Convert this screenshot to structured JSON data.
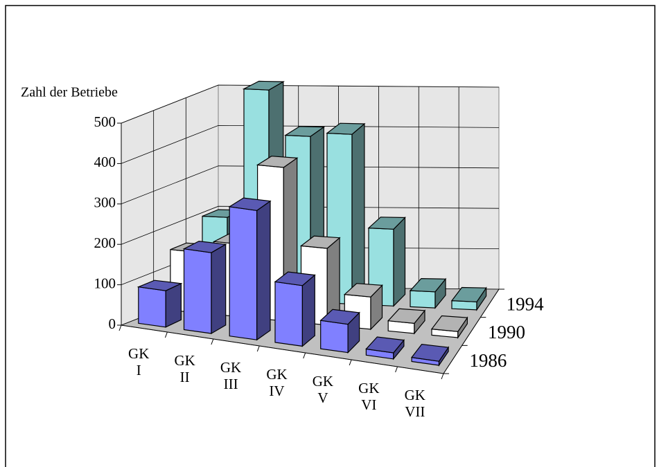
{
  "chart_data": {
    "type": "bar3d",
    "y_label": "Zahl der Betriebe",
    "categories": [
      "GK I",
      "GK II",
      "GK III",
      "GK IV",
      "GK V",
      "GK VI",
      "GK VII"
    ],
    "series": [
      {
        "name": "1986",
        "color": "#8080ff",
        "values": [
          90,
          200,
          320,
          150,
          70,
          15,
          10
        ]
      },
      {
        "name": "1990",
        "color": "#ffffff",
        "values": [
          150,
          180,
          380,
          190,
          80,
          25,
          15
        ]
      },
      {
        "name": "1994",
        "color": "#99e0e0",
        "values": [
          200,
          520,
          410,
          420,
          190,
          40,
          20
        ]
      }
    ],
    "ylim": [
      0,
      500
    ],
    "yticks": [
      0,
      100,
      200,
      300,
      400,
      500
    ],
    "grid": true
  }
}
